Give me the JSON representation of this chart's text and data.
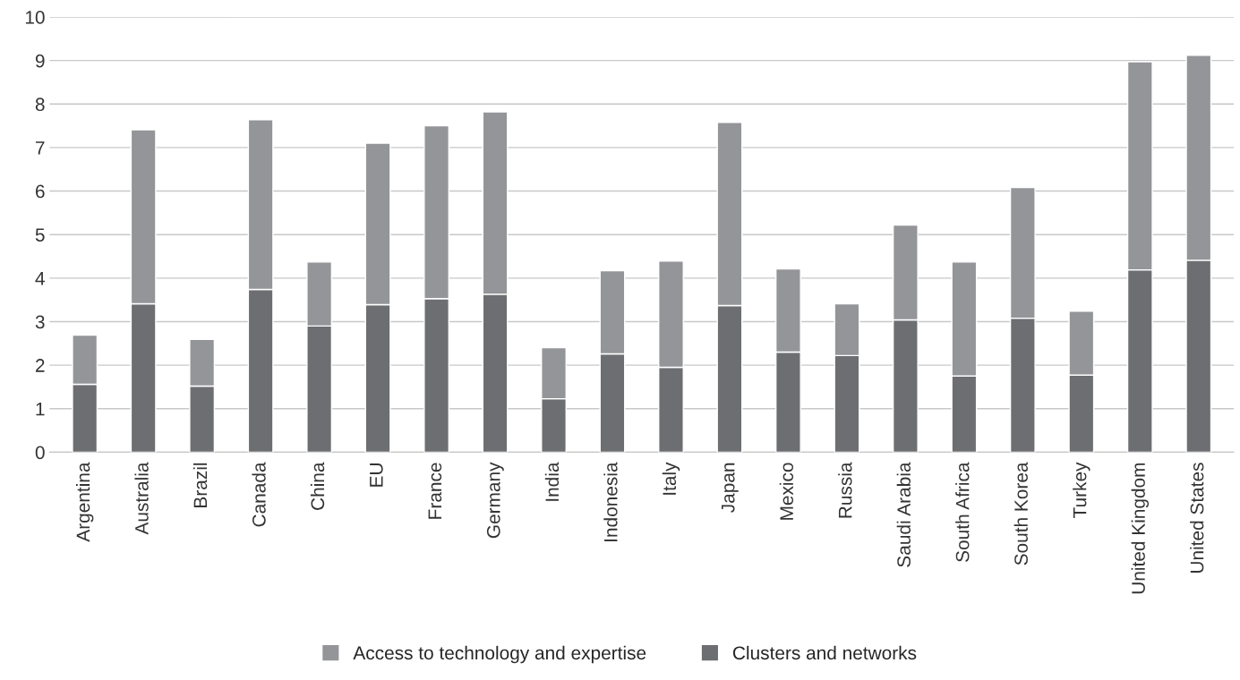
{
  "chart_data": {
    "type": "bar",
    "stacked": true,
    "categories": [
      "Argentina",
      "Australia",
      "Brazil",
      "Canada",
      "China",
      "EU",
      "France",
      "Germany",
      "India",
      "Indonesia",
      "Italy",
      "Japan",
      "Mexico",
      "Russia",
      "Saudi Arabia",
      "South Africa",
      "South Korea",
      "Turkey",
      "United Kingdom",
      "United States"
    ],
    "series": [
      {
        "name": "Clusters and networks",
        "color": "#6d6e71",
        "values": [
          1.56,
          3.41,
          1.52,
          3.74,
          2.9,
          3.39,
          3.53,
          3.63,
          1.23,
          2.26,
          1.95,
          3.37,
          2.3,
          2.22,
          3.04,
          1.75,
          3.08,
          1.77,
          4.19,
          4.41
        ]
      },
      {
        "name": "Access to technology and expertise",
        "color": "#939598",
        "values": [
          1.13,
          4.0,
          1.07,
          3.9,
          1.47,
          3.71,
          3.97,
          4.19,
          1.17,
          1.91,
          2.44,
          4.21,
          1.91,
          1.19,
          2.18,
          2.62,
          3.0,
          1.47,
          4.78,
          4.71
        ]
      }
    ],
    "ylim": [
      0,
      10
    ],
    "yticks": [
      0,
      1,
      2,
      3,
      4,
      5,
      6,
      7,
      8,
      9,
      10
    ],
    "grid": "y",
    "legend": "bottom"
  }
}
